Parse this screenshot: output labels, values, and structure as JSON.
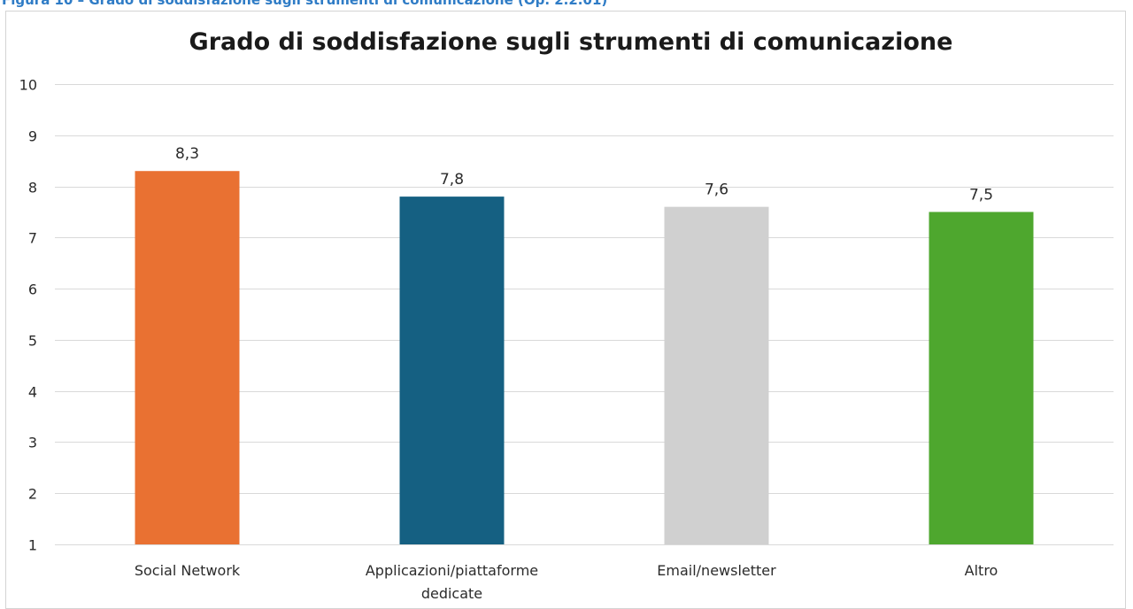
{
  "figure_caption": "Figura 10 – Grado di soddisfazione sugli strumenti di comunicazione (Op. 2.2.01)",
  "chart_data": {
    "type": "bar",
    "title": "Grado di soddisfazione sugli strumenti di comunicazione",
    "xlabel": "",
    "ylabel": "",
    "ylim": [
      1,
      10
    ],
    "yticks": [
      1,
      2,
      3,
      4,
      5,
      6,
      7,
      8,
      9,
      10
    ],
    "grid": true,
    "legend": "none",
    "categories": [
      [
        "Social Network"
      ],
      [
        "Applicazioni/piattaforme",
        "dedicate"
      ],
      [
        "Email/newsletter"
      ],
      [
        "Altro"
      ]
    ],
    "values": [
      8.3,
      7.8,
      7.6,
      7.5
    ],
    "data_labels": [
      "8,3",
      "7,8",
      "7,6",
      "7,5"
    ],
    "colors": [
      "#e97132",
      "#156082",
      "#d0d0d0",
      "#4ea72e"
    ]
  }
}
